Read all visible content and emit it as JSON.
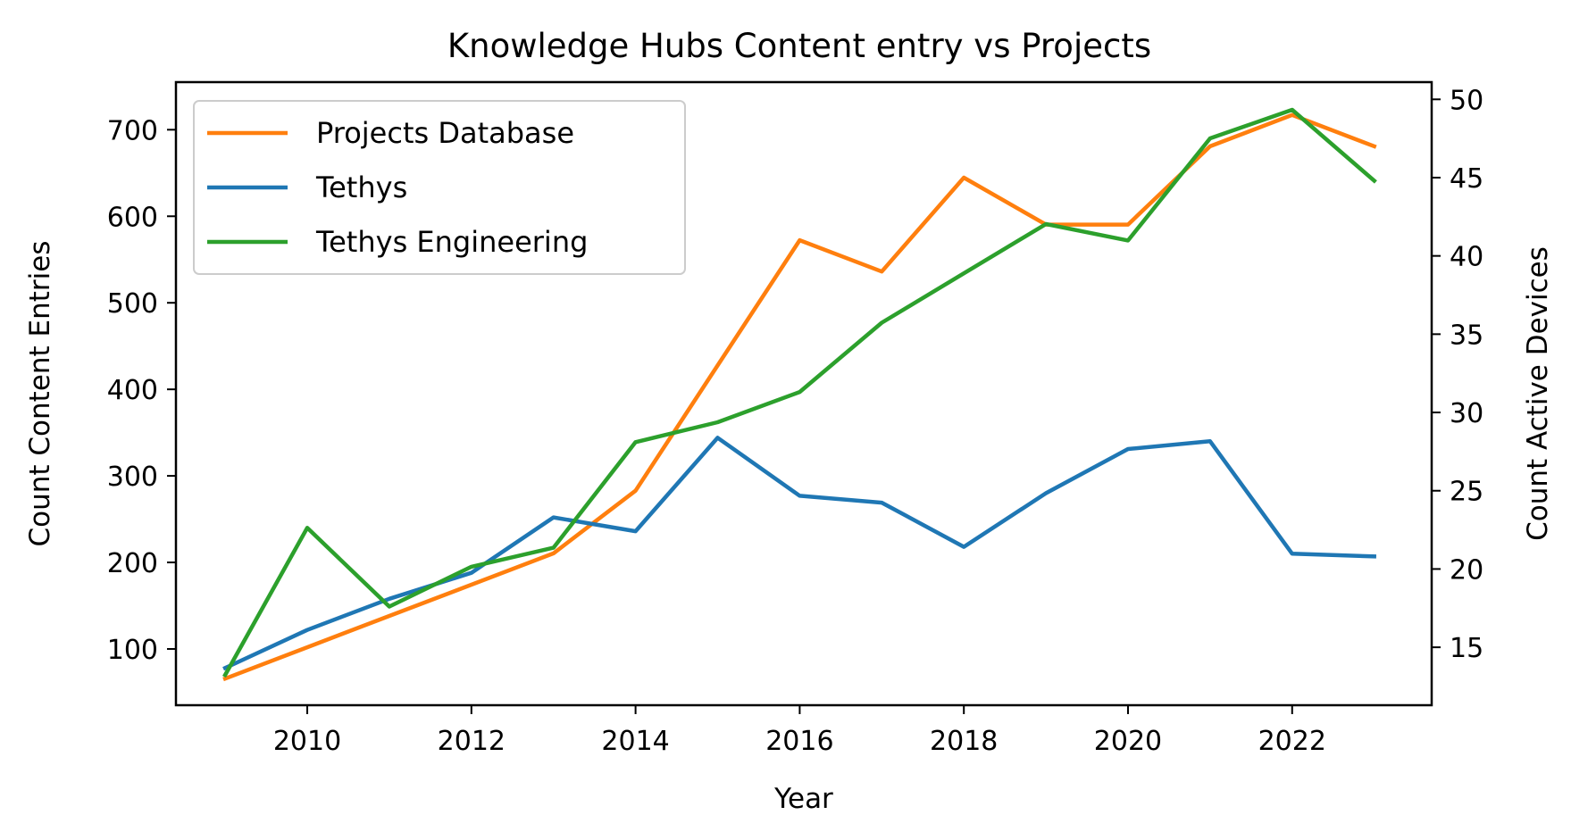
{
  "chart_data": {
    "type": "line",
    "title": "Knowledge Hubs Content entry vs Projects",
    "xlabel": "Year",
    "ylabel_left": "Count Content Entries",
    "ylabel_right": "Count Active Devices",
    "x": [
      2009,
      2010,
      2011,
      2012,
      2013,
      2014,
      2015,
      2016,
      2017,
      2018,
      2019,
      2020,
      2021,
      2022,
      2023
    ],
    "xlim": [
      2008.4,
      2023.7
    ],
    "ylim_left": [
      35,
      755
    ],
    "ylim_right": [
      11.3,
      51.1
    ],
    "x_ticks": [
      2010,
      2012,
      2014,
      2016,
      2018,
      2020,
      2022
    ],
    "y_ticks_left": [
      100,
      200,
      300,
      400,
      500,
      600,
      700
    ],
    "y_ticks_right": [
      15,
      20,
      25,
      30,
      35,
      40,
      45,
      50
    ],
    "legend_position": "upper-left",
    "grid": false,
    "series": [
      {
        "name": "Projects Database",
        "axis": "right",
        "color": "#ff7f0e",
        "values": [
          13,
          15,
          17,
          19,
          21,
          25,
          33,
          41,
          39,
          45,
          42,
          42,
          47,
          49,
          47
        ]
      },
      {
        "name": "Tethys",
        "axis": "left",
        "color": "#1f77b4",
        "values": [
          78,
          122,
          158,
          188,
          252,
          236,
          344,
          277,
          269,
          218,
          280,
          331,
          340,
          210,
          207
        ]
      },
      {
        "name": "Tethys Engineering",
        "axis": "left",
        "color": "#2ca02c",
        "values": [
          70,
          240,
          149,
          195,
          217,
          339,
          362,
          397,
          477,
          534,
          591,
          572,
          690,
          723,
          641
        ]
      }
    ]
  }
}
